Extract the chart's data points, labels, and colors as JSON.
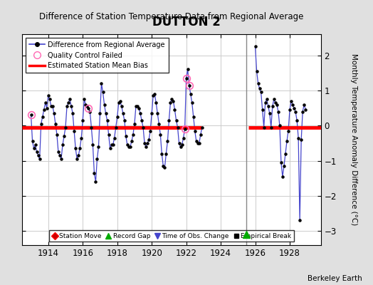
{
  "title": "DUTTON 2",
  "subtitle": "Difference of Station Temperature Data from Regional Average",
  "ylabel": "Monthly Temperature Anomaly Difference (°C)",
  "credit": "Berkeley Earth",
  "background_color": "#e0e0e0",
  "plot_bg_color": "#ffffff",
  "grid_color": "#cccccc",
  "ylim": [
    -3.4,
    2.6
  ],
  "xlim": [
    1912.5,
    1929.8
  ],
  "xticks": [
    1914,
    1916,
    1918,
    1920,
    1922,
    1924,
    1926,
    1928
  ],
  "yticks": [
    -3,
    -2,
    -1,
    0,
    1,
    2
  ],
  "bias_value_1": -0.05,
  "bias_value_2": -0.05,
  "bias_x1_start": 1912.5,
  "bias_x1_end": 1922.9,
  "bias_x2_start": 1925.6,
  "bias_x2_end": 1929.8,
  "record_gap_x": 1925.5,
  "record_gap_y": -3.1,
  "vertical_line_x": 1925.5,
  "time_series_seg1": [
    [
      1913.0,
      0.3
    ],
    [
      1913.083,
      -0.45
    ],
    [
      1913.167,
      -0.65
    ],
    [
      1913.25,
      -0.55
    ],
    [
      1913.333,
      -0.75
    ],
    [
      1913.417,
      -0.85
    ],
    [
      1913.5,
      -0.95
    ],
    [
      1913.583,
      0.05
    ],
    [
      1913.667,
      0.25
    ],
    [
      1913.75,
      0.45
    ],
    [
      1913.833,
      0.65
    ],
    [
      1913.917,
      0.5
    ],
    [
      1914.0,
      0.85
    ],
    [
      1914.083,
      0.75
    ],
    [
      1914.167,
      0.55
    ],
    [
      1914.25,
      0.55
    ],
    [
      1914.333,
      0.35
    ],
    [
      1914.417,
      0.05
    ],
    [
      1914.5,
      -0.25
    ],
    [
      1914.583,
      -0.75
    ],
    [
      1914.667,
      -0.85
    ],
    [
      1914.75,
      -0.95
    ],
    [
      1914.833,
      -0.55
    ],
    [
      1914.917,
      -0.3
    ],
    [
      1915.0,
      -0.05
    ],
    [
      1915.083,
      0.55
    ],
    [
      1915.167,
      0.65
    ],
    [
      1915.25,
      0.75
    ],
    [
      1915.333,
      0.55
    ],
    [
      1915.417,
      0.35
    ],
    [
      1915.5,
      -0.15
    ],
    [
      1915.583,
      -0.65
    ],
    [
      1915.667,
      -0.95
    ],
    [
      1915.75,
      -0.85
    ],
    [
      1915.833,
      -0.65
    ],
    [
      1915.917,
      -0.35
    ],
    [
      1916.0,
      0.15
    ],
    [
      1916.083,
      0.75
    ],
    [
      1916.167,
      0.6
    ],
    [
      1916.25,
      0.55
    ],
    [
      1916.333,
      0.5
    ],
    [
      1916.417,
      0.4
    ],
    [
      1916.5,
      -0.05
    ],
    [
      1916.583,
      -0.55
    ],
    [
      1916.667,
      -1.35
    ],
    [
      1916.75,
      -1.6
    ],
    [
      1916.833,
      -0.95
    ],
    [
      1916.917,
      -0.6
    ],
    [
      1917.0,
      0.35
    ],
    [
      1917.083,
      1.2
    ],
    [
      1917.167,
      0.95
    ],
    [
      1917.25,
      0.6
    ],
    [
      1917.333,
      0.35
    ],
    [
      1917.417,
      0.15
    ],
    [
      1917.5,
      -0.25
    ],
    [
      1917.583,
      -0.65
    ],
    [
      1917.667,
      -0.55
    ],
    [
      1917.75,
      -0.55
    ],
    [
      1917.833,
      -0.35
    ],
    [
      1917.917,
      -0.05
    ],
    [
      1918.0,
      0.25
    ],
    [
      1918.083,
      0.65
    ],
    [
      1918.167,
      0.7
    ],
    [
      1918.25,
      0.55
    ],
    [
      1918.333,
      0.35
    ],
    [
      1918.417,
      0.15
    ],
    [
      1918.5,
      -0.3
    ],
    [
      1918.583,
      -0.55
    ],
    [
      1918.667,
      -0.6
    ],
    [
      1918.75,
      -0.6
    ],
    [
      1918.833,
      -0.45
    ],
    [
      1918.917,
      -0.25
    ],
    [
      1919.0,
      0.05
    ],
    [
      1919.083,
      0.55
    ],
    [
      1919.167,
      0.55
    ],
    [
      1919.25,
      0.5
    ],
    [
      1919.333,
      0.35
    ],
    [
      1919.417,
      0.15
    ],
    [
      1919.5,
      -0.05
    ],
    [
      1919.583,
      -0.5
    ],
    [
      1919.667,
      -0.6
    ],
    [
      1919.75,
      -0.5
    ],
    [
      1919.833,
      -0.4
    ],
    [
      1919.917,
      -0.15
    ],
    [
      1920.0,
      0.35
    ],
    [
      1920.083,
      0.85
    ],
    [
      1920.167,
      0.9
    ],
    [
      1920.25,
      0.65
    ],
    [
      1920.333,
      0.35
    ],
    [
      1920.417,
      0.05
    ],
    [
      1920.5,
      -0.25
    ],
    [
      1920.583,
      -0.8
    ],
    [
      1920.667,
      -1.15
    ],
    [
      1920.75,
      -1.2
    ],
    [
      1920.833,
      -0.8
    ],
    [
      1920.917,
      -0.45
    ],
    [
      1921.0,
      0.15
    ],
    [
      1921.083,
      0.65
    ],
    [
      1921.167,
      0.75
    ],
    [
      1921.25,
      0.7
    ],
    [
      1921.333,
      0.45
    ],
    [
      1921.417,
      0.15
    ],
    [
      1921.5,
      -0.05
    ],
    [
      1921.583,
      -0.5
    ],
    [
      1921.667,
      -0.6
    ],
    [
      1921.75,
      -0.55
    ],
    [
      1921.833,
      -0.35
    ],
    [
      1921.917,
      -0.1
    ],
    [
      1922.0,
      1.35
    ],
    [
      1922.083,
      1.6
    ],
    [
      1922.167,
      1.15
    ],
    [
      1922.25,
      0.9
    ],
    [
      1922.333,
      0.65
    ],
    [
      1922.417,
      0.25
    ],
    [
      1922.5,
      -0.15
    ],
    [
      1922.583,
      -0.45
    ],
    [
      1922.667,
      -0.5
    ],
    [
      1922.75,
      -0.5
    ],
    [
      1922.833,
      -0.25
    ],
    [
      1922.917,
      -0.05
    ]
  ],
  "time_series_seg2": [
    [
      1926.0,
      2.25
    ],
    [
      1926.083,
      1.55
    ],
    [
      1926.167,
      1.2
    ],
    [
      1926.25,
      1.05
    ],
    [
      1926.333,
      0.95
    ],
    [
      1926.417,
      0.45
    ],
    [
      1926.5,
      -0.05
    ],
    [
      1926.583,
      0.65
    ],
    [
      1926.667,
      0.75
    ],
    [
      1926.75,
      0.55
    ],
    [
      1926.833,
      0.35
    ],
    [
      1926.917,
      -0.05
    ],
    [
      1927.0,
      0.55
    ],
    [
      1927.083,
      0.75
    ],
    [
      1927.167,
      0.65
    ],
    [
      1927.25,
      0.6
    ],
    [
      1927.333,
      0.4
    ],
    [
      1927.417,
      0.0
    ],
    [
      1927.5,
      -1.05
    ],
    [
      1927.583,
      -1.45
    ],
    [
      1927.667,
      -1.15
    ],
    [
      1927.75,
      -0.8
    ],
    [
      1927.833,
      -0.45
    ],
    [
      1927.917,
      -0.15
    ],
    [
      1928.0,
      0.45
    ],
    [
      1928.083,
      0.7
    ],
    [
      1928.167,
      0.6
    ],
    [
      1928.25,
      0.5
    ],
    [
      1928.333,
      0.4
    ],
    [
      1928.417,
      0.15
    ],
    [
      1928.5,
      -0.35
    ],
    [
      1928.583,
      -2.7
    ],
    [
      1928.667,
      -0.4
    ],
    [
      1928.75,
      0.4
    ],
    [
      1928.833,
      0.6
    ],
    [
      1928.917,
      0.45
    ]
  ],
  "qc_failed_points": [
    [
      1913.0,
      0.3
    ],
    [
      1916.333,
      0.5
    ],
    [
      1921.917,
      -0.1
    ],
    [
      1922.0,
      1.35
    ],
    [
      1922.167,
      1.15
    ]
  ]
}
